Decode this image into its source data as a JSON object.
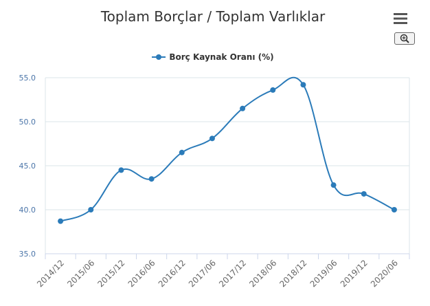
{
  "page": {
    "title": "Toplam Borçlar / Toplam Varlıklar",
    "menu_icon": "hamburger-menu-icon",
    "zoom_icon": "zoom-in-icon"
  },
  "colors": {
    "series": "#2b7bb9",
    "grid": "#dbe4ea",
    "axis_text": "#4a74a8",
    "tick_text": "#666666"
  },
  "chart_data": {
    "type": "line",
    "title": "Toplam Borçlar / Toplam Varlıklar",
    "xlabel": "",
    "ylabel": "",
    "categories": [
      "2014/12",
      "2015/06",
      "2015/12",
      "2016/06",
      "2016/12",
      "2017/06",
      "2017/12",
      "2018/06",
      "2018/12",
      "2019/06",
      "2019/12",
      "2020/06"
    ],
    "series": [
      {
        "name": "Borç Kaynak Oranı (%)",
        "values": [
          38.7,
          40.0,
          44.5,
          43.5,
          46.5,
          48.1,
          51.5,
          53.6,
          54.2,
          42.8,
          41.8,
          40.0
        ]
      }
    ],
    "ylim": [
      35,
      55
    ],
    "yticks": [
      "55.0",
      "50.0",
      "45.0",
      "40.0",
      "35.0"
    ],
    "ytick_values": [
      55,
      50,
      45,
      40,
      35
    ],
    "grid": true,
    "legend": "top-center"
  }
}
